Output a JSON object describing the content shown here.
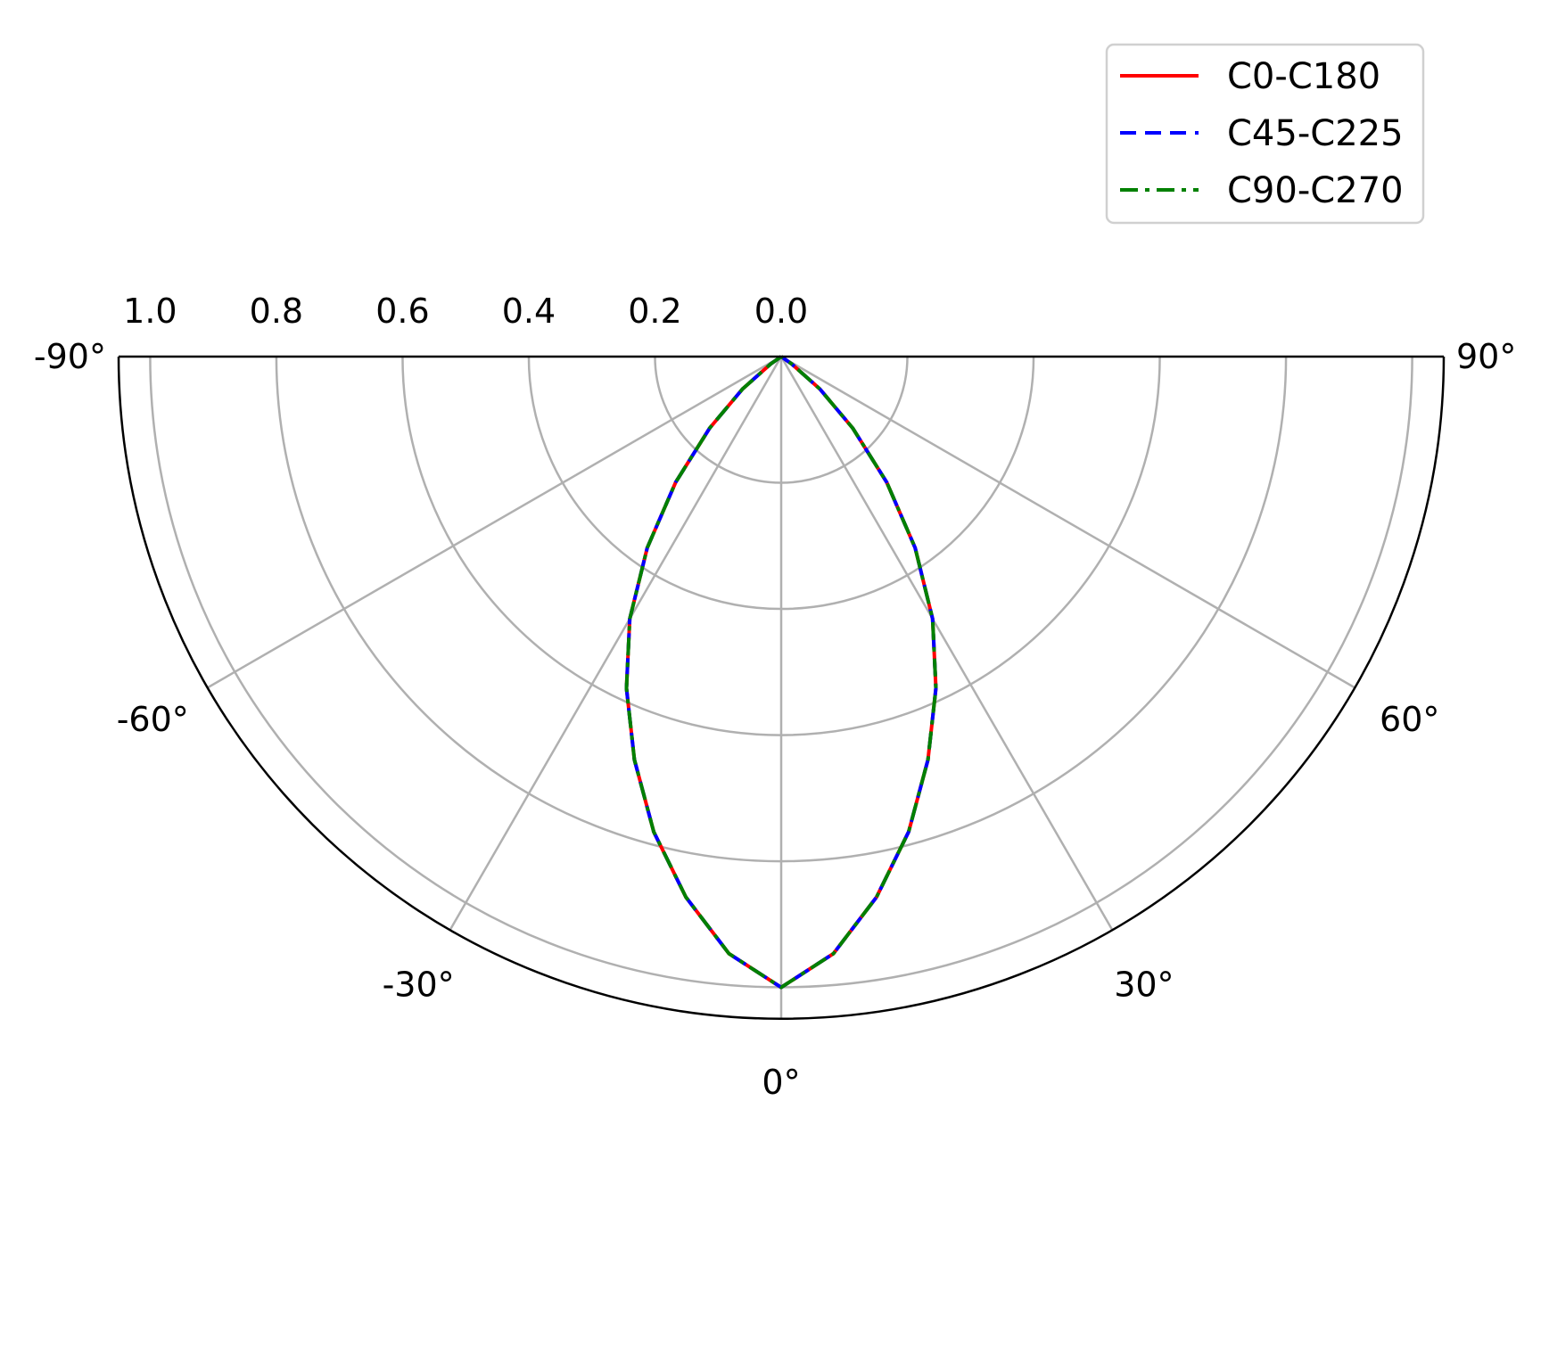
{
  "chart_data": {
    "type": "line",
    "projection": "polar-half-plane",
    "title": "",
    "angle_ticks": [
      "-90°",
      "-60°",
      "-30°",
      "0°",
      "30°",
      "60°",
      "90°"
    ],
    "angle_tick_values": [
      -90,
      -60,
      -30,
      0,
      30,
      60,
      90
    ],
    "radius_ticks": [
      "1.0",
      "0.8",
      "0.6",
      "0.4",
      "0.2",
      "0.0"
    ],
    "radius_tick_values": [
      1.0,
      0.8,
      0.6,
      0.4,
      0.2,
      0.0
    ],
    "rlim": [
      0,
      1.05
    ],
    "radial_axis_direction": "0.0 at center, 1.0 toward edge",
    "grid": true,
    "legend_position": "top-right",
    "x": [
      -90,
      -80,
      -70,
      -60,
      -55,
      -50,
      -45,
      -40,
      -35,
      -30,
      -25,
      -20,
      -15,
      -10,
      -5,
      0,
      5,
      10,
      15,
      20,
      25,
      30,
      35,
      40,
      45,
      50,
      55,
      60,
      70,
      80,
      90
    ],
    "series": [
      {
        "name": "C0-C180",
        "color": "#ff0000",
        "dash": "solid",
        "values": [
          0,
          0,
          0,
          0,
          0.02,
          0.08,
          0.16,
          0.26,
          0.37,
          0.48,
          0.58,
          0.68,
          0.78,
          0.87,
          0.95,
          1.0,
          0.95,
          0.87,
          0.78,
          0.68,
          0.58,
          0.48,
          0.37,
          0.26,
          0.16,
          0.08,
          0.02,
          0,
          0,
          0,
          0
        ]
      },
      {
        "name": "C45-C225",
        "color": "#0000ff",
        "dash": "dashed",
        "values": [
          0,
          0,
          0,
          0,
          0.02,
          0.08,
          0.16,
          0.26,
          0.37,
          0.48,
          0.58,
          0.68,
          0.78,
          0.87,
          0.95,
          1.0,
          0.95,
          0.87,
          0.78,
          0.68,
          0.58,
          0.48,
          0.37,
          0.26,
          0.16,
          0.08,
          0.02,
          0,
          0,
          0,
          0
        ]
      },
      {
        "name": "C90-C270",
        "color": "#008000",
        "dash": "dashdot",
        "values": [
          0,
          0,
          0,
          0,
          0.02,
          0.08,
          0.16,
          0.26,
          0.37,
          0.48,
          0.58,
          0.68,
          0.78,
          0.87,
          0.95,
          1.0,
          0.95,
          0.87,
          0.78,
          0.68,
          0.58,
          0.48,
          0.37,
          0.26,
          0.16,
          0.08,
          0.02,
          0,
          0,
          0,
          0
        ]
      }
    ]
  }
}
